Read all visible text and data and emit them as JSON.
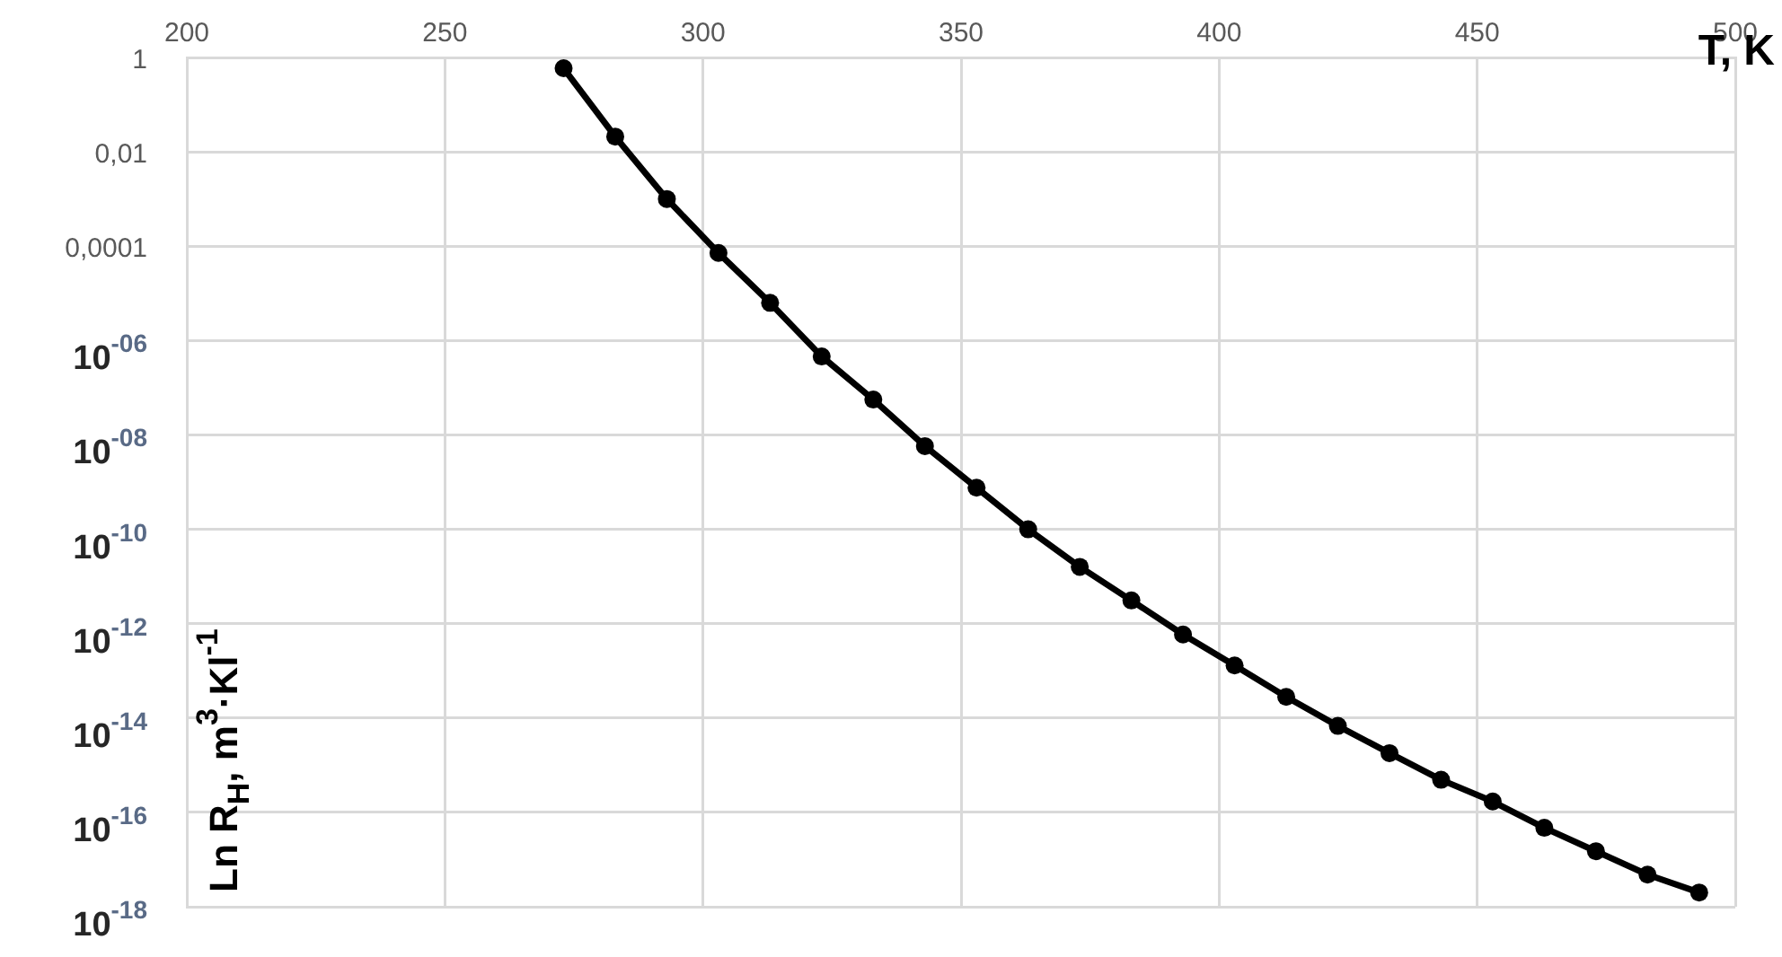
{
  "chart_data": {
    "type": "line",
    "xlabel": "T, K",
    "ylabel": "Ln R$_{H}$, m$^{3}$·Kl$^{-1}$",
    "x": [
      273,
      283,
      293,
      303,
      313,
      323,
      333,
      343,
      353,
      363,
      373,
      383,
      393,
      403,
      413,
      423,
      433,
      443,
      453,
      463,
      473,
      483,
      493
    ],
    "series": [
      {
        "color": "#000000",
        "values": [
          0.59,
          0.021,
          0.001,
          7.2e-05,
          6.3e-06,
          4.6e-07,
          5.6e-08,
          5.8e-09,
          7.6e-10,
          1e-10,
          1.6e-11,
          3.1e-12,
          5.9e-13,
          1.3e-13,
          2.8e-14,
          6.8e-15,
          1.8e-15,
          4.9e-16,
          1.7e-16,
          4.7e-17,
          1.5e-17,
          4.8e-18,
          2e-18
        ]
      }
    ],
    "log": "y",
    "xlim": [
      200,
      500
    ],
    "xticks": [
      200,
      250,
      300,
      350,
      400,
      450,
      500
    ],
    "ylim": [
      1e-18,
      1
    ],
    "yticks": [
      {
        "value": 1,
        "label": "1"
      },
      {
        "value": 0.01,
        "label": "0,01"
      },
      {
        "value": 0.0001,
        "label": "0,0001"
      },
      {
        "value": 1e-06,
        "label": "10$^{-06}$"
      },
      {
        "value": 1e-08,
        "label": "10$^{-08}$"
      },
      {
        "value": 1e-10,
        "label": "10$^{-10}$"
      },
      {
        "value": 1e-12,
        "label": "10$^{-12}$"
      },
      {
        "value": 1e-14,
        "label": "10$^{-14}$"
      },
      {
        "value": 1e-16,
        "label": "10$^{-16}$"
      },
      {
        "value": 1e-18,
        "label": "10$^{-18}$"
      }
    ],
    "grid": true,
    "legend": false,
    "marker": "circle",
    "line_style": "solid"
  }
}
